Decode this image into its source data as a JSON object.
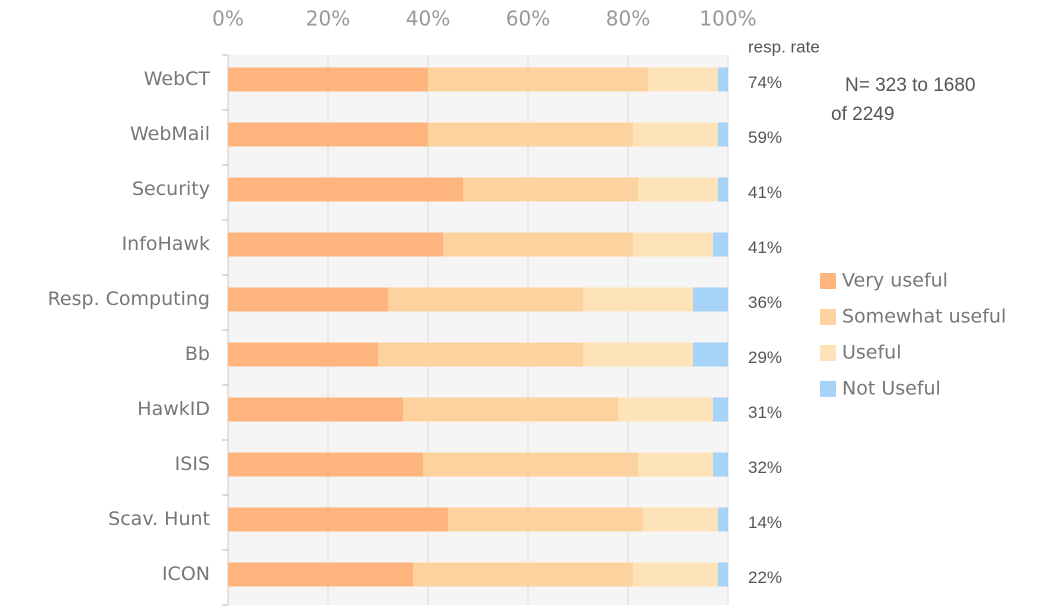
{
  "chart_data": {
    "type": "stacked_barh",
    "categories": [
      "WebCT",
      "WebMail",
      "Security",
      "InfoHawk",
      "Resp. Computing",
      "Bb",
      "HawkID",
      "ISIS",
      "Scav. Hunt",
      "ICON"
    ],
    "series": [
      {
        "name": "Very useful",
        "color": "#fdb57d",
        "values": [
          40,
          40,
          47,
          43,
          32,
          30,
          35,
          39,
          44,
          37
        ]
      },
      {
        "name": "Somewhat useful",
        "color": "#fdd29f",
        "values": [
          44,
          41,
          35,
          38,
          39,
          41,
          43,
          43,
          39,
          44
        ]
      },
      {
        "name": "Useful",
        "color": "#fee3b8",
        "values": [
          14,
          17,
          16,
          16,
          22,
          22,
          19,
          15,
          15,
          17
        ]
      },
      {
        "name": "Not Useful",
        "color": "#a8d3f8",
        "values": [
          2,
          2,
          2,
          3,
          7,
          7,
          3,
          3,
          2,
          2
        ]
      }
    ],
    "xlim": [
      0,
      100
    ],
    "xticks": [
      {
        "value": 0,
        "label": "0%"
      },
      {
        "value": 20,
        "label": "20%"
      },
      {
        "value": 40,
        "label": "40%"
      },
      {
        "value": 60,
        "label": "60%"
      },
      {
        "value": 80,
        "label": "80%"
      },
      {
        "value": 100,
        "label": "100%"
      }
    ],
    "grid": true,
    "legend": "right",
    "rate_header": "resp. rate",
    "rate_labels": [
      "74%",
      "59%",
      "41%",
      "41%",
      "36%",
      "29%",
      "31%",
      "32%",
      "14%",
      "22%"
    ],
    "annotation": [
      "N= 323 to 1680",
      "of 2249"
    ]
  }
}
